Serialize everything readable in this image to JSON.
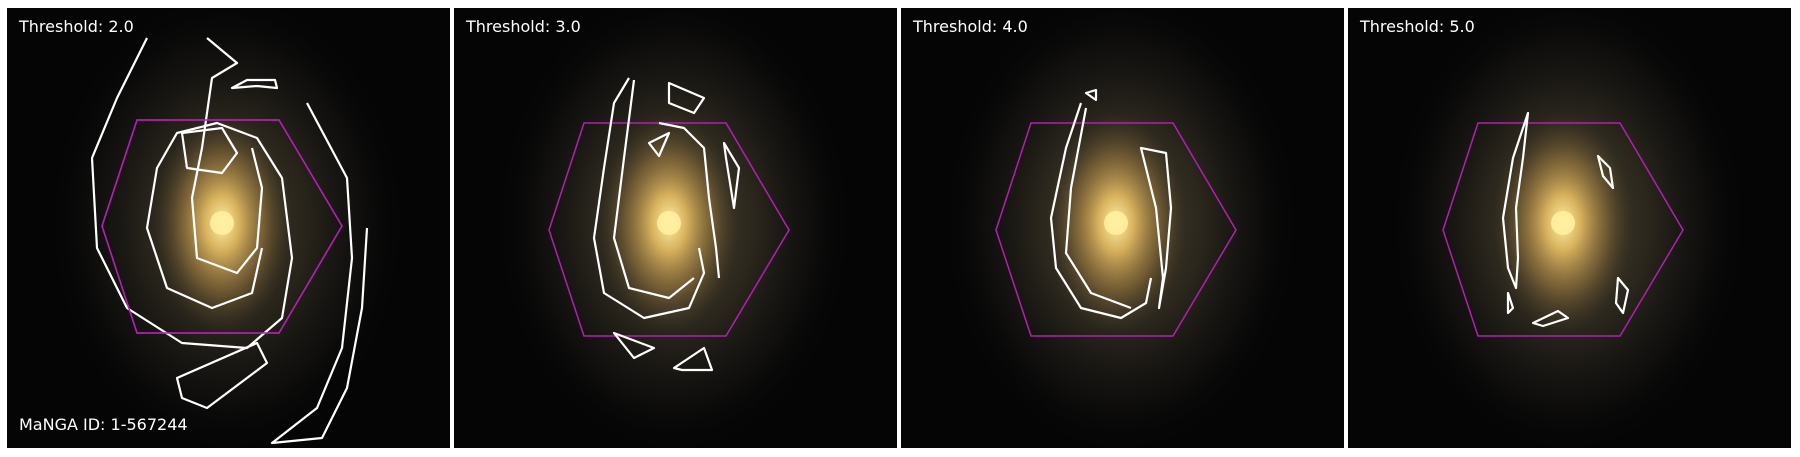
{
  "panels": [
    {
      "threshold_label": "Threshold: 2.0"
    },
    {
      "threshold_label": "Threshold: 3.0"
    },
    {
      "threshold_label": "Threshold: 4.0"
    },
    {
      "threshold_label": "Threshold: 5.0"
    }
  ],
  "manga_id_label": "MaNGA ID: 1-567244",
  "colors": {
    "contour": "#ffffff",
    "ifu_hexagon": "#b21fb2",
    "galaxy_core": "#f3dc7a",
    "background": "#050505"
  }
}
